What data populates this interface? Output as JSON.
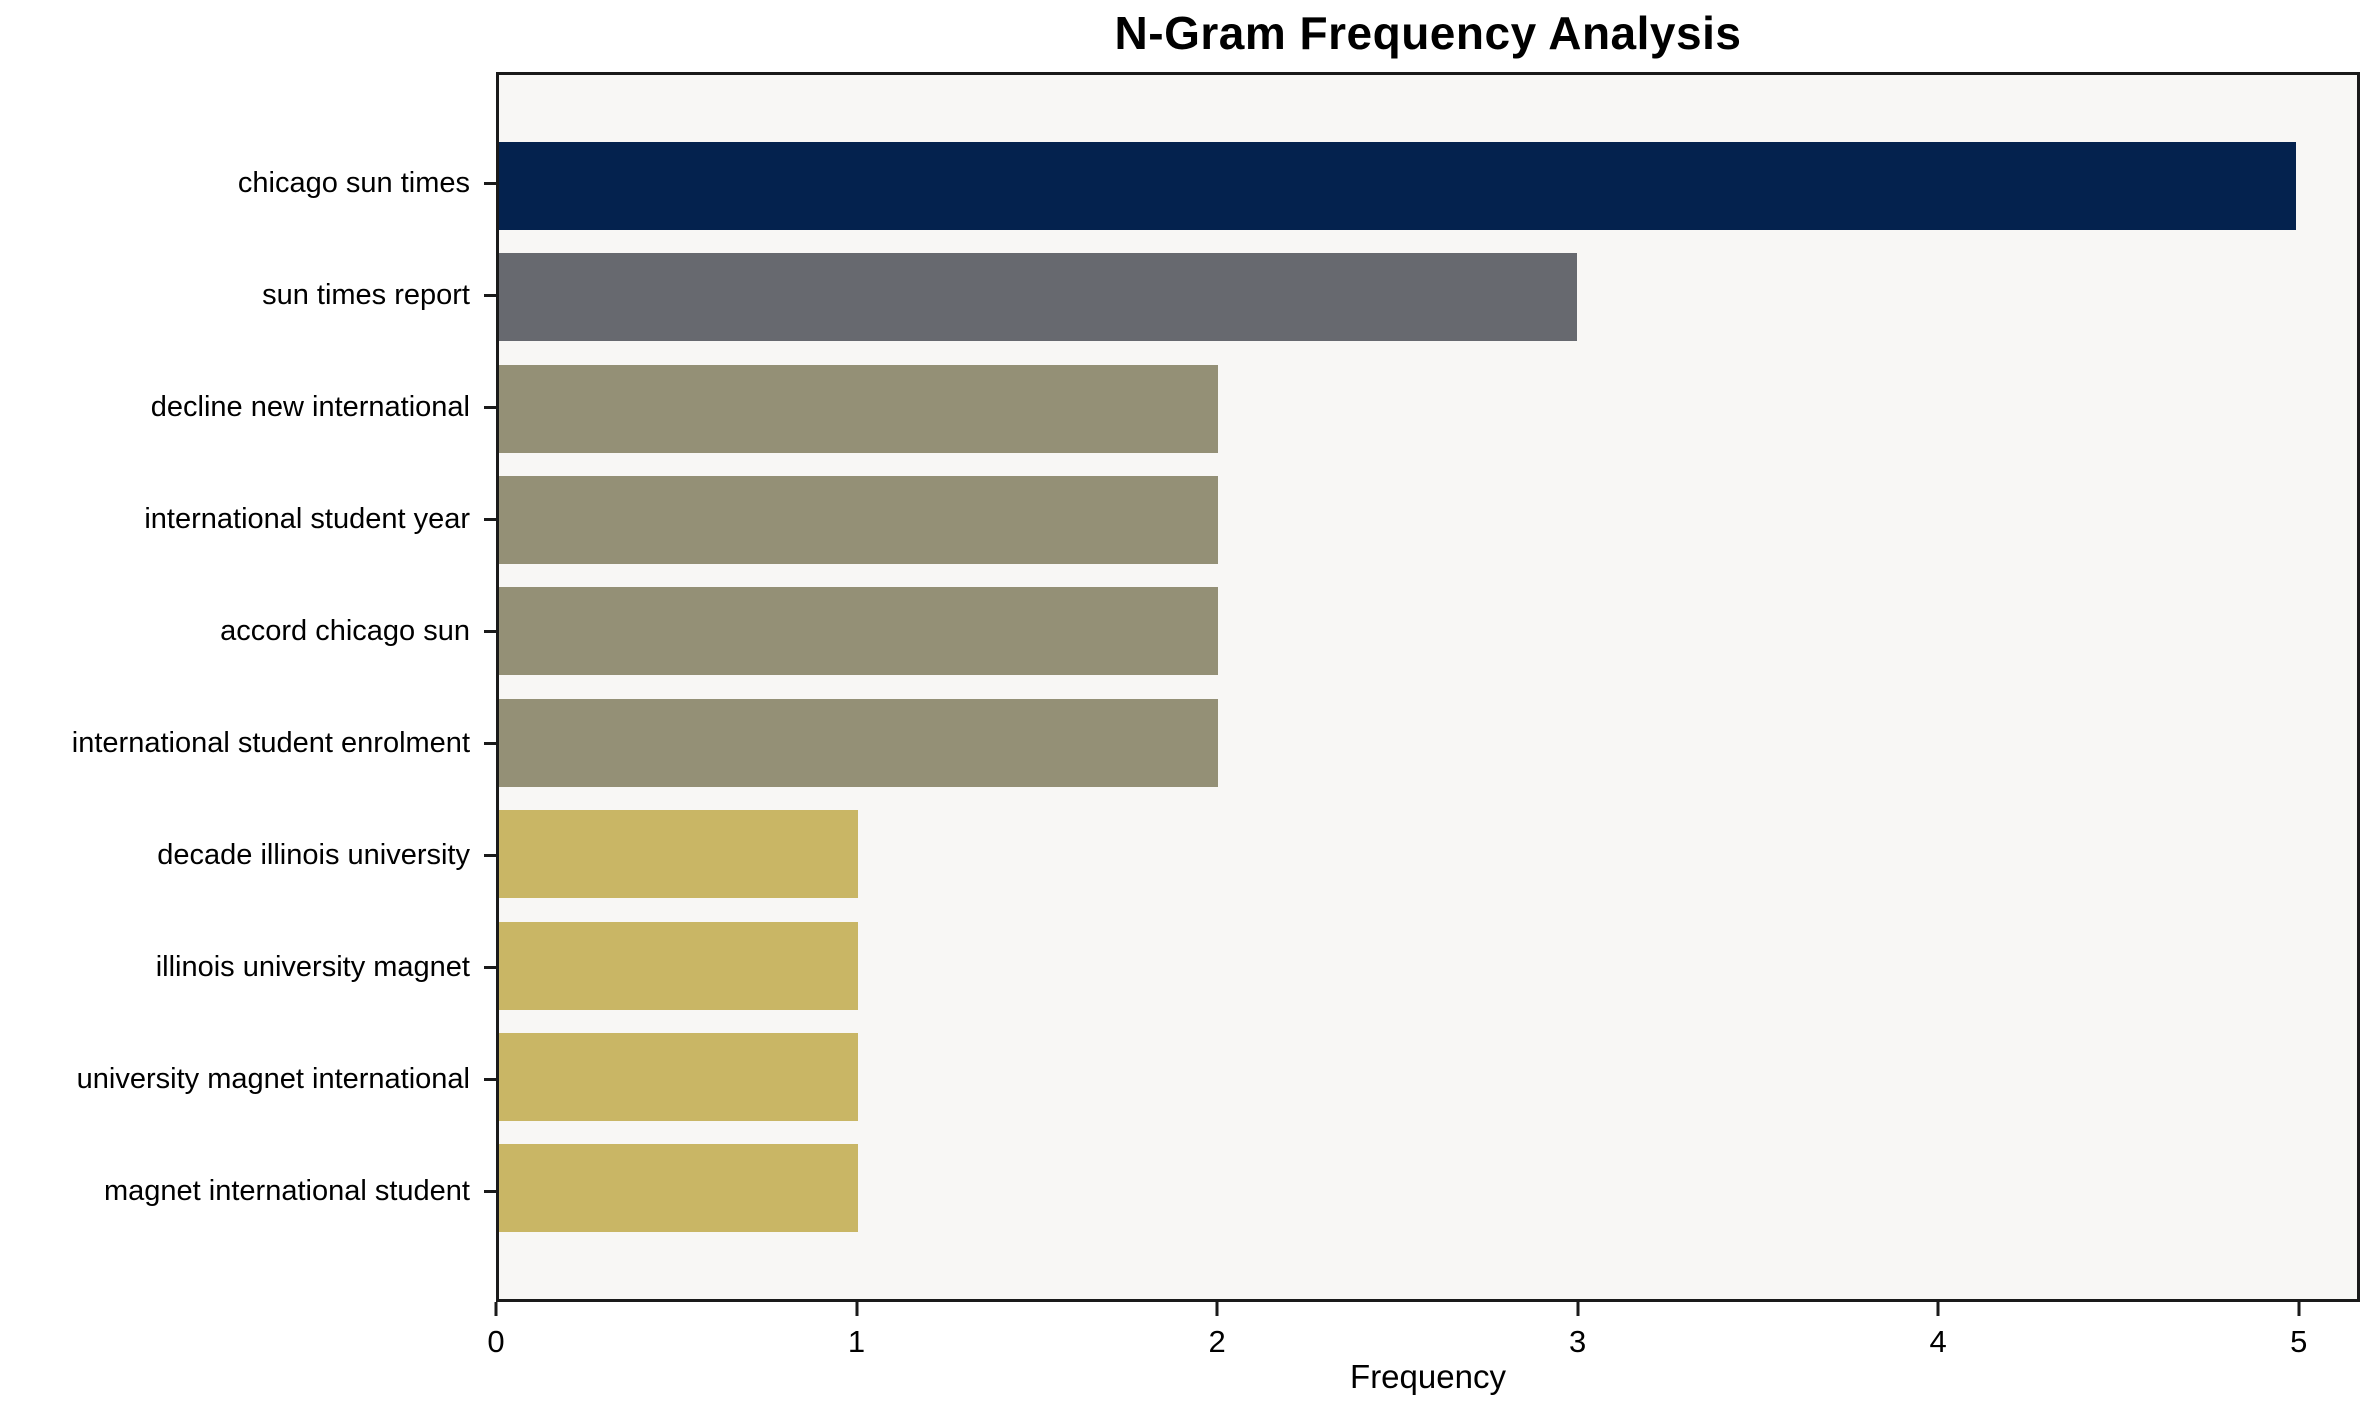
{
  "chart_data": {
    "type": "bar",
    "orientation": "horizontal",
    "title": "N-Gram Frequency Analysis",
    "xlabel": "Frequency",
    "ylabel": "",
    "categories": [
      "chicago sun times",
      "sun times report",
      "decline new international",
      "international student year",
      "accord chicago sun",
      "international student enrolment",
      "decade illinois university",
      "illinois university magnet",
      "university magnet international",
      "magnet international student"
    ],
    "values": [
      5,
      3,
      2,
      2,
      2,
      2,
      1,
      1,
      1,
      1
    ],
    "bar_colors": [
      "#04224e",
      "#67696f",
      "#949076",
      "#949076",
      "#949076",
      "#949076",
      "#c9b665",
      "#c9b665",
      "#c9b665",
      "#c9b665"
    ],
    "xticks": [
      0,
      1,
      2,
      3,
      4,
      5
    ],
    "xlim": [
      0,
      5.17
    ],
    "grid": false,
    "legend_position": "none",
    "plot_background": "#f8f7f5",
    "spine_color": "#1a1a1a"
  }
}
